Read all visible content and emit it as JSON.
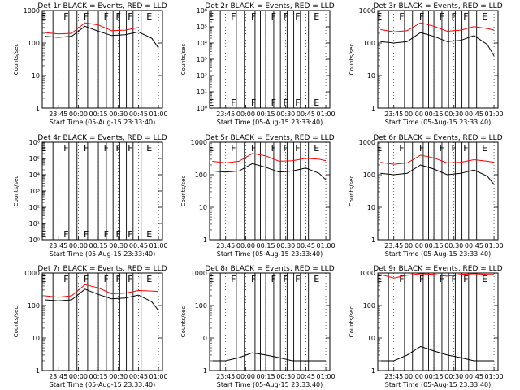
{
  "xticks": [
    "23:45",
    "00:00",
    "00:15",
    "00:30",
    "00:45",
    "01:00"
  ],
  "xlabel": "Start Time (05-Aug-15 23:33:40)",
  "ylabel": "Counts/sec",
  "colors": {
    "events": "#000000",
    "lld": "#ff0000",
    "frame": "#000000"
  },
  "chart_data": [
    {
      "type": "line",
      "title": "Det 1r BLACK = Events, RED = LLD",
      "xlabel": "Start Time (05-Aug-15 23:33:40)",
      "ylabel": "Counts/sec",
      "yscale": "log",
      "ylim": [
        1,
        1000
      ],
      "yticks": [
        "1",
        "10",
        "100",
        "1000"
      ],
      "x_times_min_after_2345": [
        -10,
        0,
        10,
        20,
        30,
        40,
        50,
        60,
        70,
        75
      ],
      "series": [
        {
          "name": "BLACK = Events",
          "values": [
            160,
            150,
            160,
            330,
            230,
            170,
            180,
            220,
            140,
            70
          ]
        },
        {
          "name": "RED = LLD",
          "values": [
            210,
            190,
            200,
            420,
            360,
            240,
            250,
            300,
            null,
            null
          ]
        }
      ],
      "letters": [
        {
          "x": -13,
          "label": "E"
        },
        {
          "x": 4,
          "label": "F"
        },
        {
          "x": 19,
          "label": "F"
        },
        {
          "x": 34,
          "label": "F"
        },
        {
          "x": 43,
          "label": "F"
        },
        {
          "x": 52,
          "label": "F"
        },
        {
          "x": 66,
          "label": "E"
        }
      ]
    },
    {
      "type": "line",
      "title": "Det 2r BLACK = Events, RED = LLD",
      "xlabel": "Start Time (05-Aug-15 23:33:40)",
      "ylabel": "Counts/sec",
      "yscale": "log",
      "ylim": [
        1,
        1000000
      ],
      "yticks": [
        "10⁰",
        "10¹",
        "10²",
        "10³",
        "10⁴",
        "10⁵",
        "10⁶"
      ],
      "x_times_min_after_2345": [],
      "series": [],
      "letters": [
        {
          "x": -13,
          "label": "E"
        },
        {
          "x": 4,
          "label": "F"
        },
        {
          "x": 19,
          "label": "F"
        },
        {
          "x": 34,
          "label": "F"
        },
        {
          "x": 43,
          "label": "F"
        },
        {
          "x": 52,
          "label": "F"
        },
        {
          "x": 66,
          "label": "E"
        }
      ]
    },
    {
      "type": "line",
      "title": "Det 3r BLACK = Events, RED = LLD",
      "xlabel": "Start Time (05-Aug-15 23:33:40)",
      "ylabel": "Counts/sec",
      "yscale": "log",
      "ylim": [
        1,
        1000
      ],
      "yticks": [
        "1",
        "10",
        "100",
        "1000"
      ],
      "x_times_min_after_2345": [
        -10,
        0,
        10,
        20,
        30,
        40,
        50,
        60,
        70,
        75
      ],
      "series": [
        {
          "name": "BLACK = Events",
          "values": [
            110,
            100,
            110,
            210,
            160,
            110,
            120,
            170,
            90,
            40
          ]
        },
        {
          "name": "RED = LLD",
          "values": [
            260,
            220,
            240,
            420,
            330,
            230,
            250,
            320,
            280,
            250
          ]
        }
      ],
      "letters": [
        {
          "x": -13,
          "label": "E"
        },
        {
          "x": 4,
          "label": "F"
        },
        {
          "x": 19,
          "label": "F"
        },
        {
          "x": 34,
          "label": "F"
        },
        {
          "x": 43,
          "label": "F"
        },
        {
          "x": 52,
          "label": "F"
        },
        {
          "x": 66,
          "label": "E"
        }
      ]
    },
    {
      "type": "line",
      "title": "Det 4r BLACK = Events, RED = LLD",
      "xlabel": "Start Time (05-Aug-15 23:33:40)",
      "ylabel": "Counts/sec",
      "yscale": "log",
      "ylim": [
        1,
        1000000
      ],
      "yticks": [
        "10⁰",
        "10¹",
        "10²",
        "10³",
        "10⁴",
        "10⁵",
        "10⁶"
      ],
      "x_times_min_after_2345": [],
      "series": [],
      "letters": [
        {
          "x": -13,
          "label": "E"
        },
        {
          "x": 4,
          "label": "F"
        },
        {
          "x": 19,
          "label": "F"
        },
        {
          "x": 34,
          "label": "F"
        },
        {
          "x": 43,
          "label": "F"
        },
        {
          "x": 52,
          "label": "F"
        },
        {
          "x": 66,
          "label": "E"
        }
      ]
    },
    {
      "type": "line",
      "title": "Det 5r BLACK = Events, RED = LLD",
      "xlabel": "Start Time (05-Aug-15 23:33:40)",
      "ylabel": "Counts/sec",
      "yscale": "log",
      "ylim": [
        1,
        1000
      ],
      "yticks": [
        "1",
        "10",
        "100",
        "1000"
      ],
      "x_times_min_after_2345": [
        -10,
        0,
        10,
        20,
        30,
        40,
        50,
        60,
        70,
        75
      ],
      "series": [
        {
          "name": "BLACK = Events",
          "values": [
            130,
            120,
            130,
            220,
            170,
            120,
            130,
            160,
            110,
            70
          ]
        },
        {
          "name": "RED = LLD",
          "values": [
            260,
            230,
            260,
            450,
            380,
            260,
            270,
            320,
            300,
            270
          ]
        }
      ],
      "letters": [
        {
          "x": -13,
          "label": "E"
        },
        {
          "x": 4,
          "label": "F"
        },
        {
          "x": 19,
          "label": "F"
        },
        {
          "x": 34,
          "label": "F"
        },
        {
          "x": 43,
          "label": "F"
        },
        {
          "x": 52,
          "label": "F"
        },
        {
          "x": 66,
          "label": "E"
        }
      ]
    },
    {
      "type": "line",
      "title": "Det 6r BLACK = Events, RED = LLD",
      "xlabel": "Start Time (05-Aug-15 23:33:40)",
      "ylabel": "Counts/sec",
      "yscale": "log",
      "ylim": [
        1,
        1000
      ],
      "yticks": [
        "1",
        "10",
        "100",
        "1000"
      ],
      "x_times_min_after_2345": [
        -10,
        0,
        10,
        20,
        30,
        40,
        50,
        60,
        70,
        75
      ],
      "series": [
        {
          "name": "BLACK = Events",
          "values": [
            110,
            100,
            110,
            200,
            150,
            100,
            110,
            140,
            90,
            50
          ]
        },
        {
          "name": "RED = LLD",
          "values": [
            240,
            210,
            230,
            400,
            330,
            230,
            240,
            290,
            260,
            240
          ]
        }
      ],
      "letters": [
        {
          "x": -13,
          "label": "E"
        },
        {
          "x": 4,
          "label": "F"
        },
        {
          "x": 19,
          "label": "F"
        },
        {
          "x": 34,
          "label": "F"
        },
        {
          "x": 43,
          "label": "F"
        },
        {
          "x": 52,
          "label": "F"
        },
        {
          "x": 66,
          "label": "E"
        }
      ]
    },
    {
      "type": "line",
      "title": "Det 7r BLACK = Events, RED = LLD",
      "xlabel": "Start Time (05-Aug-15 23:33:40)",
      "ylabel": "Counts/sec",
      "yscale": "log",
      "ylim": [
        1,
        1000
      ],
      "yticks": [
        "1",
        "10",
        "100",
        "1000"
      ],
      "x_times_min_after_2345": [
        -10,
        0,
        10,
        20,
        30,
        40,
        50,
        60,
        70,
        75
      ],
      "series": [
        {
          "name": "BLACK = Events",
          "values": [
            150,
            140,
            150,
            320,
            220,
            160,
            170,
            210,
            130,
            70
          ]
        },
        {
          "name": "RED = LLD",
          "values": [
            200,
            180,
            200,
            440,
            350,
            230,
            240,
            290,
            280,
            270
          ]
        }
      ],
      "letters": [
        {
          "x": -13,
          "label": "E"
        },
        {
          "x": 4,
          "label": "F"
        },
        {
          "x": 19,
          "label": "F"
        },
        {
          "x": 34,
          "label": "F"
        },
        {
          "x": 43,
          "label": "F"
        },
        {
          "x": 52,
          "label": "F"
        },
        {
          "x": 66,
          "label": "E"
        }
      ]
    },
    {
      "type": "line",
      "title": "Det 8r BLACK = Events, RED = LLD",
      "xlabel": "Start Time (05-Aug-15 23:33:40)",
      "ylabel": "Counts/sec",
      "yscale": "log",
      "ylim": [
        1,
        1000
      ],
      "yticks": [
        "1",
        "10",
        "100",
        "1000"
      ],
      "x_times_min_after_2345": [
        -10,
        0,
        10,
        20,
        30,
        40,
        50,
        60,
        70,
        75
      ],
      "series": [
        {
          "name": "BLACK = Events",
          "values": [
            2,
            2,
            2.5,
            3.5,
            3,
            2.5,
            2,
            2,
            2,
            2
          ]
        }
      ],
      "letters": [
        {
          "x": -13,
          "label": "E"
        },
        {
          "x": 4,
          "label": "F"
        },
        {
          "x": 19,
          "label": "F"
        },
        {
          "x": 34,
          "label": "F"
        },
        {
          "x": 43,
          "label": "F"
        },
        {
          "x": 52,
          "label": "F"
        },
        {
          "x": 66,
          "label": "E"
        }
      ]
    },
    {
      "type": "line",
      "title": "Det 9r BLACK = Events, RED = LLD",
      "xlabel": "Start Time (05-Aug-15 23:33:40)",
      "ylabel": "Counts/sec",
      "yscale": "log",
      "ylim": [
        1,
        1000
      ],
      "yticks": [
        "1",
        "10",
        "100",
        "1000"
      ],
      "x_times_min_after_2345": [
        -10,
        0,
        10,
        20,
        30,
        40,
        50,
        60,
        70,
        75
      ],
      "series": [
        {
          "name": "BLACK = Events",
          "values": [
            2,
            2,
            3,
            5.5,
            4,
            3,
            2.5,
            2,
            2,
            2
          ]
        },
        {
          "name": "RED = LLD",
          "values": [
            900,
            700,
            850,
            950,
            900,
            800,
            900,
            950,
            900,
            900
          ]
        }
      ],
      "letters": [
        {
          "x": -13,
          "label": "E"
        },
        {
          "x": 4,
          "label": "F"
        },
        {
          "x": 19,
          "label": "F"
        },
        {
          "x": 34,
          "label": "F"
        },
        {
          "x": 43,
          "label": "F"
        },
        {
          "x": 52,
          "label": "F"
        },
        {
          "x": 66,
          "label": "E"
        }
      ]
    }
  ]
}
